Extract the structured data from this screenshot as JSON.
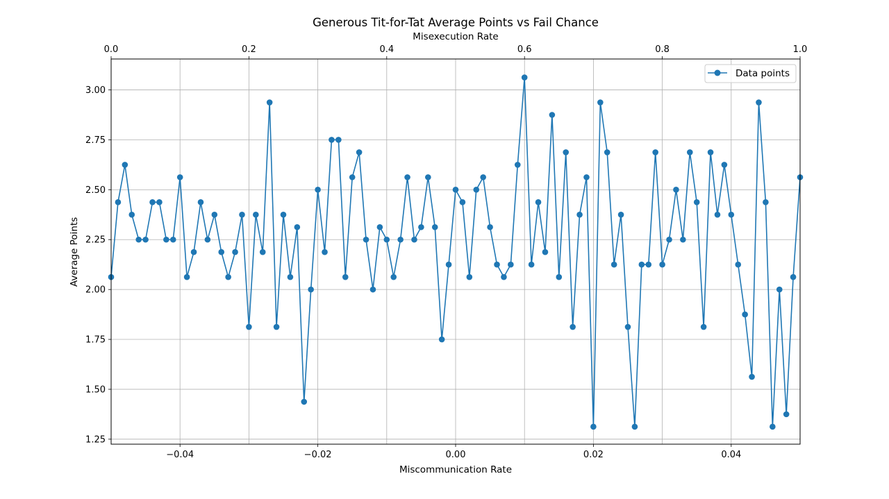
{
  "chart_data": {
    "type": "line",
    "title": "Generous Tit-for-Tat Average Points vs Fail Chance",
    "xlabel": "Miscommunication Rate",
    "ylabel": "Average Points",
    "top_xlabel": "Misexecution Rate",
    "xlim": [
      -0.05,
      0.05
    ],
    "ylim": [
      1.225,
      3.155
    ],
    "top_xlim": [
      0.0,
      1.0
    ],
    "xticks": [
      -0.04,
      -0.02,
      0.0,
      0.02,
      0.04
    ],
    "xtick_labels": [
      "−0.04",
      "−0.02",
      "0.00",
      "0.02",
      "0.04"
    ],
    "top_xticks": [
      0.0,
      0.2,
      0.4,
      0.6,
      0.8,
      1.0
    ],
    "top_xtick_labels": [
      "0.0",
      "0.2",
      "0.4",
      "0.6",
      "0.8",
      "1.0"
    ],
    "yticks": [
      1.25,
      1.5,
      1.75,
      2.0,
      2.25,
      2.5,
      2.75,
      3.0
    ],
    "ytick_labels": [
      "1.25",
      "1.50",
      "1.75",
      "2.00",
      "2.25",
      "2.50",
      "2.75",
      "3.00"
    ],
    "grid": true,
    "legend_position": "top-right",
    "color": "#1f77b4",
    "series": [
      {
        "name": "Data points",
        "x_start": -0.05,
        "x_step": 0.001,
        "values": [
          2.0625,
          2.4375,
          2.625,
          2.375,
          2.25,
          2.25,
          2.4375,
          2.4375,
          2.25,
          2.25,
          2.5625,
          2.0625,
          2.1875,
          2.4375,
          2.25,
          2.375,
          2.1875,
          2.0625,
          2.1875,
          2.375,
          1.8125,
          2.375,
          2.1875,
          2.9375,
          1.8125,
          2.375,
          2.0625,
          2.3125,
          1.4375,
          2.0,
          2.5,
          2.1875,
          2.75,
          2.75,
          2.0625,
          2.5625,
          2.6875,
          2.25,
          2.0,
          2.3125,
          2.25,
          2.0625,
          2.25,
          2.5625,
          2.25,
          2.3125,
          2.5625,
          2.3125,
          1.75,
          2.125,
          2.5,
          2.4375,
          2.0625,
          2.5,
          2.5625,
          2.3125,
          2.125,
          2.0625,
          2.125,
          2.625,
          3.0625,
          2.125,
          2.4375,
          2.1875,
          2.875,
          2.0625,
          2.6875,
          1.8125,
          2.375,
          2.5625,
          1.3125,
          2.9375,
          2.6875,
          2.125,
          2.375,
          1.8125,
          1.3125,
          2.125,
          2.125,
          2.6875,
          2.125,
          2.25,
          2.5,
          2.25,
          2.6875,
          2.4375,
          1.8125,
          2.6875,
          2.375,
          2.625,
          2.375,
          2.125,
          1.875,
          1.5625,
          2.9375,
          2.4375,
          1.3125,
          2.0,
          1.375,
          2.0625,
          2.5625
        ]
      }
    ]
  }
}
